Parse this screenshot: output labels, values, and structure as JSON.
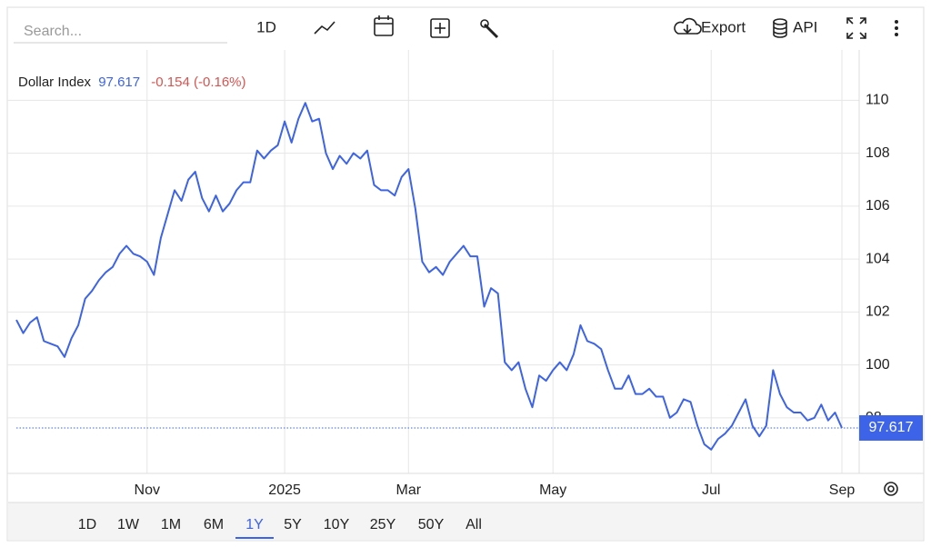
{
  "toolbar": {
    "search_placeholder": "Search...",
    "interval": "1D",
    "export": "Export",
    "api": "API"
  },
  "ranges": [
    "1D",
    "1W",
    "1M",
    "6M",
    "1Y",
    "5Y",
    "10Y",
    "25Y",
    "50Y",
    "All"
  ],
  "active_range": "1Y",
  "chart_data": {
    "type": "line",
    "title": "Dollar Index",
    "change_label": "-0.154 (-0.16%)",
    "categories": [
      null,
      null,
      null,
      null,
      null,
      null,
      null,
      null,
      null,
      null,
      null,
      null,
      null,
      null,
      null,
      null,
      null,
      null,
      null,
      "Nov",
      null,
      null,
      null,
      null,
      null,
      null,
      null,
      null,
      null,
      null,
      null,
      null,
      null,
      null,
      null,
      null,
      null,
      null,
      null,
      "2025",
      null,
      null,
      null,
      null,
      null,
      null,
      null,
      null,
      null,
      null,
      null,
      null,
      null,
      null,
      null,
      null,
      null,
      "Mar",
      null,
      null,
      null,
      null,
      null,
      null,
      null,
      null,
      null,
      null,
      null,
      null,
      null,
      null,
      null,
      null,
      null,
      null,
      null,
      null,
      "May",
      null,
      null,
      null,
      null,
      null,
      null,
      null,
      null,
      null,
      null,
      null,
      null,
      null,
      null,
      null,
      null,
      null,
      null,
      null,
      null,
      null,
      null,
      "Jul",
      null,
      null,
      null,
      null,
      null,
      null,
      null,
      null,
      null,
      null,
      null,
      null,
      null,
      null,
      null,
      null,
      null,
      null,
      "Sep"
    ],
    "series": [
      {
        "name": "Dollar Index",
        "color": "#3c63e8",
        "values": [
          101.7,
          101.2,
          101.6,
          101.8,
          100.9,
          100.8,
          100.7,
          100.3,
          101.0,
          101.5,
          102.5,
          102.8,
          103.2,
          103.5,
          103.7,
          104.2,
          104.5,
          104.2,
          104.1,
          103.9,
          103.4,
          104.8,
          105.7,
          106.6,
          106.2,
          107.0,
          107.3,
          106.3,
          105.8,
          106.4,
          105.8,
          106.1,
          106.6,
          106.9,
          106.9,
          108.1,
          107.8,
          108.1,
          108.3,
          109.2,
          108.4,
          109.3,
          109.9,
          109.2,
          109.3,
          108.0,
          107.4,
          107.9,
          107.6,
          108.0,
          107.8,
          108.1,
          106.8,
          106.6,
          106.6,
          106.4,
          107.1,
          107.4,
          105.9,
          103.9,
          103.5,
          103.7,
          103.4,
          103.9,
          104.2,
          104.5,
          104.1,
          104.1,
          102.2,
          102.9,
          102.7,
          100.1,
          99.8,
          100.1,
          99.1,
          98.4,
          99.6,
          99.4,
          99.8,
          100.1,
          99.8,
          100.4,
          101.5,
          100.9,
          100.8,
          100.6,
          99.8,
          99.1,
          99.1,
          99.6,
          98.9,
          98.9,
          99.1,
          98.8,
          98.8,
          98.0,
          98.2,
          98.7,
          98.6,
          97.7,
          97.0,
          96.8,
          97.2,
          97.4,
          97.7,
          98.2,
          98.7,
          97.7,
          97.3,
          97.7,
          99.8,
          98.9,
          98.4,
          98.2,
          98.2,
          97.9,
          98.0,
          98.5,
          97.9,
          98.2,
          97.617
        ]
      }
    ],
    "ylim": [
      95.9,
      111.9
    ],
    "yticks": [
      98,
      100,
      102,
      104,
      106,
      108,
      110
    ],
    "grid": true,
    "change_color": "#d9534f"
  }
}
